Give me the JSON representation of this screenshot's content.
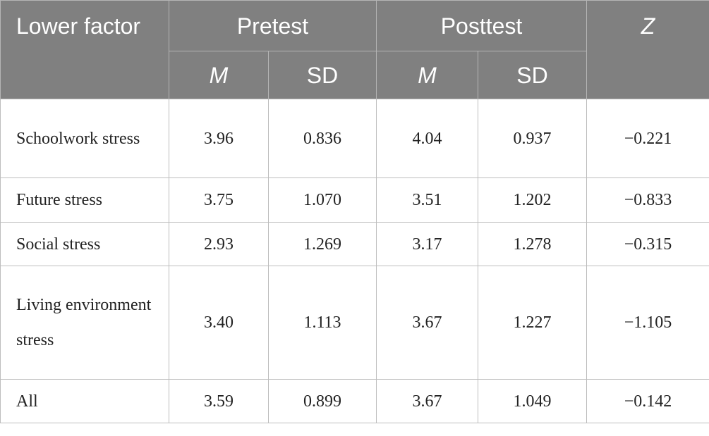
{
  "table": {
    "header": {
      "row1": [
        "Lower factor",
        "Pretest",
        "Posttest",
        "Z"
      ],
      "row2": [
        "M",
        "SD",
        "M",
        "SD"
      ]
    },
    "rows": [
      [
        "Schoolwork stress",
        "3.96",
        "0.836",
        "4.04",
        "0.937",
        "−0.221"
      ],
      [
        "Future stress",
        "3.75",
        "1.070",
        "3.51",
        "1.202",
        "−0.833"
      ],
      [
        "Social stress",
        "2.93",
        "1.269",
        "3.17",
        "1.278",
        "−0.315"
      ],
      [
        "Living environment stress",
        "3.40",
        "1.113",
        "3.67",
        "1.227",
        "−1.105"
      ],
      [
        "All",
        "3.59",
        "0.899",
        "3.67",
        "1.049",
        "−0.142"
      ]
    ]
  }
}
